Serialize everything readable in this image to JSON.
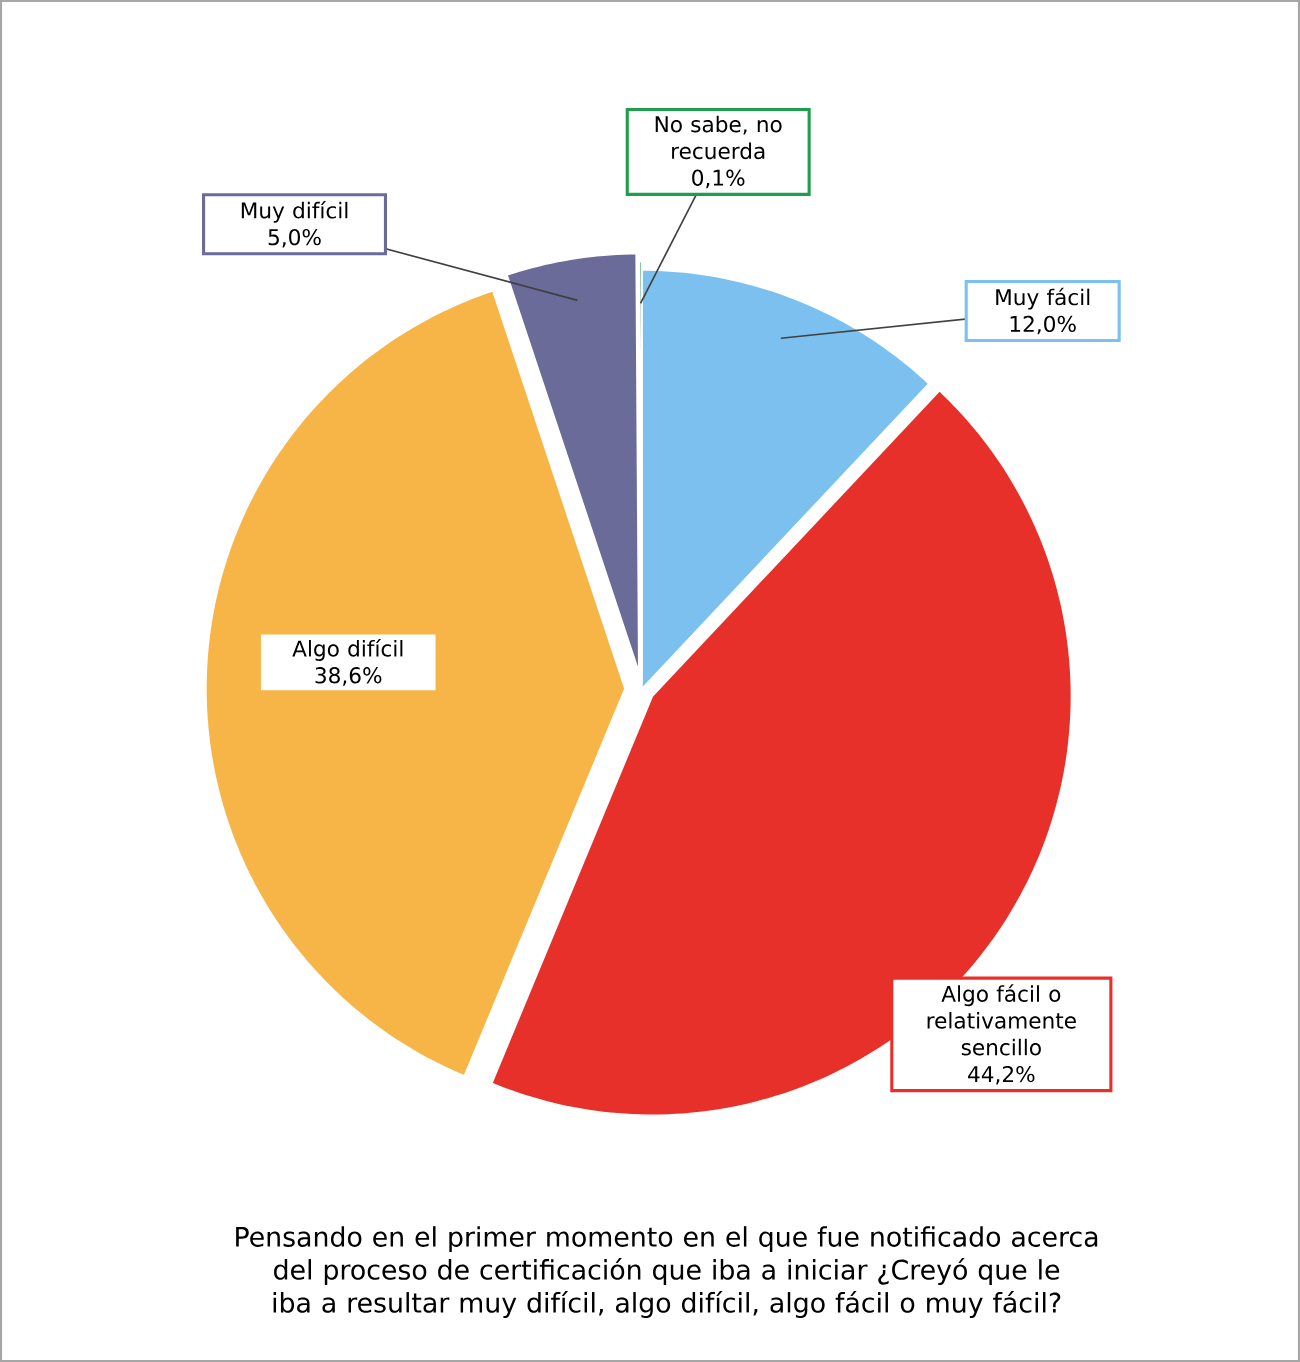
{
  "chart_data": {
    "type": "pie",
    "title": "Pensando en el primer momento en el que fue notificado acerca del proceso de certificación que iba a iniciar ¿Creyó que le iba a resultar muy difícil, algo difícil, algo fácil o muy fácil?",
    "categories": [
      "Muy fácil",
      "Algo fácil o relativamente sencillo",
      "Algo difícil",
      "Muy difícil",
      "No sabe, no recuerda"
    ],
    "values": [
      12.0,
      44.2,
      38.6,
      5.0,
      0.1
    ],
    "value_labels": [
      "12,0%",
      "44,2%",
      "38,6%",
      "5,0%",
      "0,1%"
    ],
    "colors": [
      "#7cc0f0",
      "#e8302a",
      "#f7b548",
      "#6b6b99",
      "#1f9e4c"
    ]
  }
}
